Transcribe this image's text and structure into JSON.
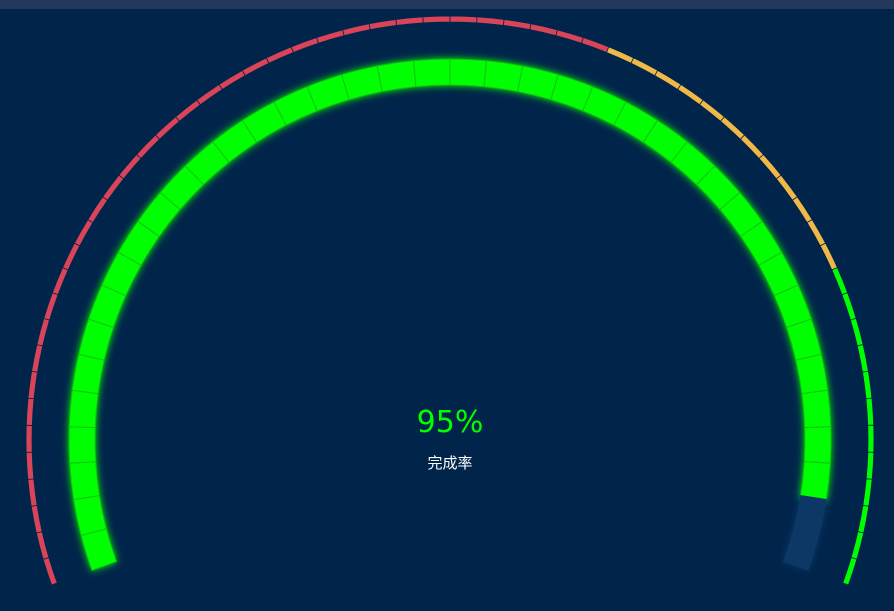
{
  "colors": {
    "background": "#01244b",
    "top_bar": "#23385a",
    "progress_fill": "#00ff00",
    "progress_empty": "#0a3766",
    "band_red": "#d94459",
    "band_yellow": "#efb847",
    "band_green": "#00ff00",
    "value_text": "#00ff00",
    "label_text": "#ffffff"
  },
  "chart_data": {
    "type": "gauge",
    "value": 95,
    "value_label": "95%",
    "label": "完成率",
    "min": 0,
    "max": 100,
    "start_angle_deg": 200,
    "end_angle_deg": -20,
    "progress_segments": 40,
    "outer_ticks": 60,
    "bands": [
      {
        "from": 0,
        "to": 0.6,
        "color": "#d94459"
      },
      {
        "from": 0.6,
        "to": 0.8,
        "color": "#efb847"
      },
      {
        "from": 0.8,
        "to": 1.0,
        "color": "#00ff00"
      }
    ]
  }
}
